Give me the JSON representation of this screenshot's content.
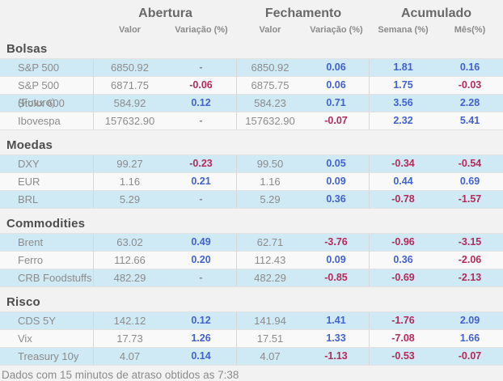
{
  "header": {
    "groups": [
      "Abertura",
      "Fechamento",
      "Acumulado"
    ],
    "subcolumns": [
      "Valor",
      "Variação (%)",
      "Valor",
      "Variação (%)",
      "Semana (%)",
      "Mês(%)"
    ]
  },
  "colors": {
    "positive": "#4262cf",
    "negative": "#b42a5b",
    "neutral_text": "#8c8c8c",
    "alt_row_background": "#cfe9f5",
    "page_background": "#f2f2f2",
    "section_title": "#4d4d4d"
  },
  "chart_data": {
    "type": "table",
    "columns": [
      "Ativo",
      "Abertura Valor",
      "Abertura Variação (%)",
      "Fechamento Valor",
      "Fechamento Variação (%)",
      "Acumulado Semana (%)",
      "Acumulado Mês(%)"
    ],
    "sections": [
      {
        "title": "Bolsas",
        "rows": [
          [
            "S&P 500",
            "6850.92",
            "-",
            "6850.92",
            "0.06",
            "1.81",
            "0.16"
          ],
          [
            "S&P 500 (Futuro)",
            "6871.75",
            "-0.06",
            "6875.75",
            "0.06",
            "1.75",
            "-0.03"
          ],
          [
            "Stoxx 600",
            "584.92",
            "0.12",
            "584.23",
            "0.71",
            "3.56",
            "2.28"
          ],
          [
            "Ibovespa",
            "157632.90",
            "-",
            "157632.90",
            "-0.07",
            "2.32",
            "5.41"
          ]
        ]
      },
      {
        "title": "Moedas",
        "rows": [
          [
            "DXY",
            "99.27",
            "-0.23",
            "99.50",
            "0.05",
            "-0.34",
            "-0.54"
          ],
          [
            "EUR",
            "1.16",
            "0.21",
            "1.16",
            "0.09",
            "0.44",
            "0.69"
          ],
          [
            "BRL",
            "5.29",
            "-",
            "5.29",
            "0.36",
            "-0.78",
            "-1.57"
          ]
        ]
      },
      {
        "title": "Commodities",
        "rows": [
          [
            "Brent",
            "63.02",
            "0.49",
            "62.71",
            "-3.76",
            "-0.96",
            "-3.15"
          ],
          [
            "Ferro",
            "112.66",
            "0.20",
            "112.43",
            "0.09",
            "0.36",
            "-2.06"
          ],
          [
            "CRB Foodstuffs",
            "482.29",
            "-",
            "482.29",
            "-0.85",
            "-0.69",
            "-2.13"
          ]
        ]
      },
      {
        "title": "Risco",
        "rows": [
          [
            "CDS 5Y",
            "142.12",
            "0.12",
            "141.94",
            "1.41",
            "-1.76",
            "2.09"
          ],
          [
            "Vix",
            "17.73",
            "1.26",
            "17.51",
            "1.33",
            "-7.08",
            "1.66"
          ],
          [
            "Treasury 10y",
            "4.07",
            "0.14",
            "4.07",
            "-1.13",
            "-0.53",
            "-0.07"
          ]
        ]
      }
    ]
  },
  "footer": "Dados com 15 minutos de atraso obtidos as 7:38"
}
